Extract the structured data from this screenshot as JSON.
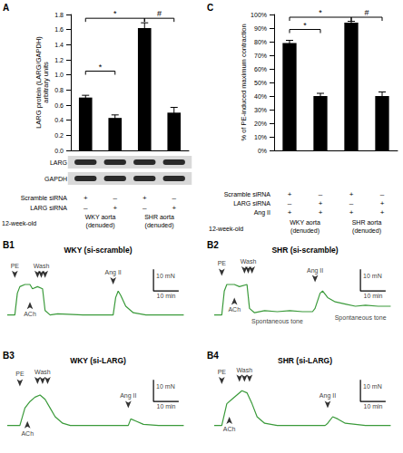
{
  "chart_data": [
    {
      "panel": "A",
      "type": "bar",
      "y_label": "LARG protein (LARG/GAPDH)\narbitrary units",
      "categories": [
        null,
        null,
        null,
        null
      ],
      "values": [
        0.7,
        0.43,
        1.62,
        0.5
      ],
      "errors": [
        0.03,
        0.04,
        0.07,
        0.07
      ],
      "color": "#000000",
      "ylim": [
        0,
        1.8
      ],
      "yticks": [
        {
          "value": 0,
          "label": "0.0"
        },
        {
          "value": 0.2,
          "label": "0.2"
        },
        {
          "value": 0.4,
          "label": "0.4"
        },
        {
          "value": 0.6,
          "label": "0.6"
        },
        {
          "value": 0.8,
          "label": "0.8"
        },
        {
          "value": 1.0,
          "label": "1.0"
        },
        {
          "value": 1.2,
          "label": "1.2"
        },
        {
          "value": 1.4,
          "label": "1.4"
        },
        {
          "value": 1.6,
          "label": "1.6"
        },
        {
          "value": 1.8,
          "label": "1.8"
        }
      ],
      "grid": false,
      "significance": [
        {
          "from": 0,
          "to": 1,
          "y": 1.05,
          "text": "*"
        },
        {
          "from": 0,
          "to": 2,
          "y": 1.75,
          "text": "*"
        },
        {
          "from": 2,
          "to": 3,
          "y": 1.75,
          "text": "#"
        }
      ],
      "blots": [
        "LARG",
        "GAPDH"
      ],
      "table": {
        "rows": [
          {
            "label": "Scramble siRNA",
            "cells": [
              "+",
              "–",
              "+",
              "–"
            ]
          },
          {
            "label": "LARG siRNA",
            "cells": [
              "–",
              "+",
              "–",
              "+"
            ]
          }
        ],
        "age": "12-week-old",
        "groups": [
          "WKY aorta\n(denuded)",
          "SHR aorta\n(denuded)"
        ]
      }
    },
    {
      "panel": "C",
      "type": "bar",
      "y_label": "% of PE-induced maximum contraction",
      "categories": [
        null,
        null,
        null,
        null
      ],
      "values": [
        79,
        40,
        94,
        40
      ],
      "errors": [
        2,
        2,
        1,
        3
      ],
      "color": "#000000",
      "ylim": [
        0,
        100
      ],
      "yticks": [
        {
          "value": 0,
          "label": "0%"
        },
        {
          "value": 10,
          "label": "10%"
        },
        {
          "value": 20,
          "label": "20%"
        },
        {
          "value": 30,
          "label": "30%"
        },
        {
          "value": 40,
          "label": "40%"
        },
        {
          "value": 50,
          "label": "50%"
        },
        {
          "value": 60,
          "label": "60%"
        },
        {
          "value": 70,
          "label": "70%"
        },
        {
          "value": 80,
          "label": "80%"
        },
        {
          "value": 90,
          "label": "90%"
        },
        {
          "value": 100,
          "label": "100%"
        }
      ],
      "grid": false,
      "significance": [
        {
          "from": 0,
          "to": 1,
          "y": 89,
          "text": "*"
        },
        {
          "from": 0,
          "to": 2,
          "y": 98,
          "text": "*"
        },
        {
          "from": 2,
          "to": 3,
          "y": 98,
          "text": "#"
        }
      ],
      "table": {
        "rows": [
          {
            "label": "Scramble siRNA",
            "cells": [
              "+",
              "–",
              "+",
              "–"
            ]
          },
          {
            "label": "LARG siRNA",
            "cells": [
              "–",
              "+",
              "–",
              "+"
            ]
          },
          {
            "label": "Ang II",
            "cells": [
              "+",
              "+",
              "+",
              "+"
            ]
          }
        ],
        "age": "12-week-old",
        "groups": [
          "WKY aorta\n(denuded)",
          "SHR aorta\n(denuded)"
        ]
      }
    },
    {
      "panel": "B1",
      "type": "line",
      "title": "WKY (si-scramble)",
      "color": "#3a9a3a",
      "tick_labels": false,
      "xlim": [
        0,
        72
      ],
      "ylim": [
        -6,
        24
      ],
      "x": [
        0,
        3,
        4,
        5,
        7,
        9,
        10,
        12,
        14,
        15,
        17,
        20,
        30,
        40,
        42,
        43,
        44,
        45,
        47,
        50,
        55,
        60,
        70
      ],
      "values": [
        0,
        0,
        10,
        13,
        14,
        14,
        12,
        13,
        12,
        2,
        0,
        0.5,
        0,
        0,
        0,
        8,
        11,
        9,
        4,
        1,
        0,
        0,
        0
      ],
      "annotations": [
        {
          "text": "PE",
          "x": [
            3
          ],
          "y": 17,
          "direction": "down"
        },
        {
          "text": "ACh",
          "x": [
            9
          ],
          "y": 6,
          "direction": "up"
        },
        {
          "text": "Wash",
          "x": [
            12,
            13.5,
            15
          ],
          "y": 17,
          "direction": "down"
        },
        {
          "text": "Ang II",
          "x": [
            42
          ],
          "y": 14,
          "direction": "down"
        }
      ],
      "scale_bar": {
        "x": 10,
        "x_label": "10 min",
        "y": 10,
        "y_label": "10 mN"
      }
    },
    {
      "panel": "B2",
      "type": "line",
      "title": "SHR (si-scramble)",
      "color": "#3a9a3a",
      "tick_labels": false,
      "xlim": [
        0,
        72
      ],
      "ylim": [
        -6,
        24
      ],
      "x": [
        0,
        3,
        4,
        5,
        8,
        10,
        13,
        14,
        16,
        20,
        25,
        30,
        35,
        39,
        40,
        42,
        43,
        45,
        48,
        52,
        56,
        60,
        65,
        70
      ],
      "values": [
        0,
        0,
        11,
        14,
        14,
        13,
        14,
        3,
        1,
        2,
        1.5,
        2,
        1.5,
        1.5,
        3,
        10,
        11,
        8,
        6,
        5,
        4,
        4.5,
        4,
        4
      ],
      "annotations": [
        {
          "text": "PE",
          "x": [
            3
          ],
          "y": 18,
          "direction": "down"
        },
        {
          "text": "ACh",
          "x": [
            8
          ],
          "y": 8,
          "direction": "up"
        },
        {
          "text": "Wash",
          "x": [
            12,
            13.5,
            15
          ],
          "y": 19,
          "direction": "down"
        },
        {
          "text": "Ang II",
          "x": [
            40
          ],
          "y": 15,
          "direction": "down"
        },
        {
          "text": "Spontaneous tone",
          "x": [
            25
          ],
          "y": -3,
          "direction": "none"
        },
        {
          "text": "Spontaneous tone",
          "x": [
            58
          ],
          "y": -1,
          "direction": "none"
        }
      ],
      "scale_bar": {
        "x": 10,
        "x_label": "10 min",
        "y": 10,
        "y_label": "10 mN"
      }
    },
    {
      "panel": "B3",
      "type": "line",
      "title": "WKY (si-LARG)",
      "color": "#3a9a3a",
      "tick_labels": false,
      "xlim": [
        0,
        72
      ],
      "ylim": [
        -6,
        24
      ],
      "x": [
        0,
        5,
        7,
        9,
        11,
        13,
        15,
        17,
        19,
        22,
        25,
        35,
        45,
        48,
        49,
        51,
        54,
        60,
        70
      ],
      "values": [
        0,
        0,
        8,
        11,
        13,
        14,
        12,
        8,
        4,
        1,
        0,
        0,
        0,
        0,
        3,
        2,
        0.5,
        0,
        0
      ],
      "annotations": [
        {
          "text": "PE",
          "x": [
            5
          ],
          "y": 18,
          "direction": "down"
        },
        {
          "text": "ACh",
          "x": [
            8
          ],
          "y": 2,
          "direction": "up"
        },
        {
          "text": "Wash",
          "x": [
            12,
            14,
            16
          ],
          "y": 19,
          "direction": "down"
        },
        {
          "text": "Ang II",
          "x": [
            48
          ],
          "y": 8,
          "direction": "down"
        }
      ],
      "scale_bar": {
        "x": 10,
        "x_label": "10 min",
        "y": 10,
        "y_label": "10 mN"
      }
    },
    {
      "panel": "B4",
      "type": "line",
      "title": "SHR (si-LARG)",
      "color": "#3a9a3a",
      "tick_labels": false,
      "xlim": [
        0,
        72
      ],
      "ylim": [
        -6,
        24
      ],
      "x": [
        0,
        3,
        5,
        7,
        9,
        11,
        13,
        15,
        17,
        20,
        25,
        35,
        44,
        45,
        47,
        49,
        52,
        56,
        60,
        70
      ],
      "values": [
        0,
        0,
        10,
        12,
        14,
        16,
        15,
        10,
        4,
        1,
        0,
        0,
        0,
        1,
        4,
        3,
        1,
        0.5,
        0,
        0
      ],
      "annotations": [
        {
          "text": "PE",
          "x": [
            3
          ],
          "y": 19,
          "direction": "down"
        },
        {
          "text": "ACh",
          "x": [
            6
          ],
          "y": 4,
          "direction": "up"
        },
        {
          "text": "Wash",
          "x": [
            10,
            12,
            14
          ],
          "y": 20,
          "direction": "down"
        },
        {
          "text": "Ang II",
          "x": [
            45
          ],
          "y": 8,
          "direction": "down"
        }
      ],
      "scale_bar": {
        "x": 10,
        "x_label": "10 min",
        "y": 10,
        "y_label": "10 mN"
      }
    }
  ]
}
